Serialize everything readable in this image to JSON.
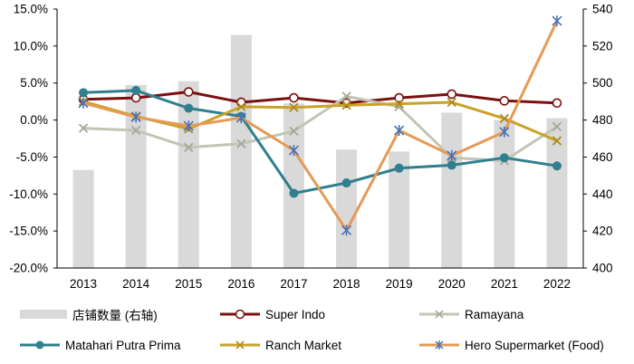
{
  "chart_data": {
    "type": "bar+line",
    "categories": [
      "2013",
      "2014",
      "2015",
      "2016",
      "2017",
      "2018",
      "2019",
      "2020",
      "2021",
      "2022"
    ],
    "left_axis": {
      "min": -20,
      "max": 15,
      "step": 5,
      "tick_labels": [
        "-20.0%",
        "-15.0%",
        "-10.0%",
        "-5.0%",
        "0.0%",
        "5.0%",
        "10.0%",
        "15.0%"
      ]
    },
    "right_axis": {
      "min": 400,
      "max": 540,
      "step": 20,
      "tick_labels": [
        "400",
        "420",
        "440",
        "460",
        "480",
        "500",
        "520",
        "540"
      ]
    },
    "bars": {
      "name": "店铺数量 (右轴)",
      "axis": "right",
      "color": "#d9d9d9",
      "values": [
        453,
        499,
        501,
        526,
        489,
        464,
        463,
        484,
        480,
        481
      ]
    },
    "series": [
      {
        "name": "Super Indo",
        "color": "#7b1010",
        "marker": "circle-open",
        "values": [
          2.8,
          3.0,
          3.8,
          2.4,
          3.0,
          2.3,
          3.0,
          3.5,
          2.6,
          2.3
        ]
      },
      {
        "name": "Ramayana",
        "color": "#c4c4b4",
        "marker": "x",
        "values": [
          -1.1,
          -1.4,
          -3.7,
          -3.2,
          -1.5,
          3.2,
          1.8,
          -5.1,
          -5.5,
          -0.9
        ]
      },
      {
        "name": "Matahari Putra Prima",
        "color": "#2f7f8f",
        "marker": "circle-filled",
        "values": [
          3.7,
          4.0,
          1.6,
          0.5,
          -9.9,
          -8.5,
          -6.5,
          -6.1,
          -5.1,
          -6.2
        ]
      },
      {
        "name": "Ranch Market",
        "color": "#c9a227",
        "marker": "x",
        "values": [
          2.5,
          0.5,
          -1.2,
          1.8,
          1.7,
          2.0,
          2.2,
          2.4,
          0.2,
          -2.8
        ]
      },
      {
        "name": "Hero Supermarket (Food)",
        "color": "#e59a55",
        "marker": "asterisk",
        "marker_color": "#4a72b8",
        "values": [
          2.3,
          0.4,
          -0.8,
          0.3,
          -4.1,
          -14.9,
          -1.4,
          -4.8,
          -1.6,
          13.4
        ]
      }
    ]
  },
  "legend": [
    {
      "label": "店铺数量 (右轴)",
      "type": "bar",
      "color": "#d9d9d9"
    },
    {
      "label": "Super Indo",
      "type": "line",
      "color": "#7b1010",
      "marker": "circle-open"
    },
    {
      "label": "Ramayana",
      "type": "line",
      "color": "#c4c4b4",
      "marker": "x"
    },
    {
      "label": "Matahari Putra Prima",
      "type": "line",
      "color": "#2f7f8f",
      "marker": "circle-filled"
    },
    {
      "label": "Ranch Market",
      "type": "line",
      "color": "#c9a227",
      "marker": "x"
    },
    {
      "label": "Hero Supermarket (Food)",
      "type": "line",
      "color": "#e59a55",
      "marker": "asterisk",
      "marker_color": "#4a72b8"
    }
  ]
}
